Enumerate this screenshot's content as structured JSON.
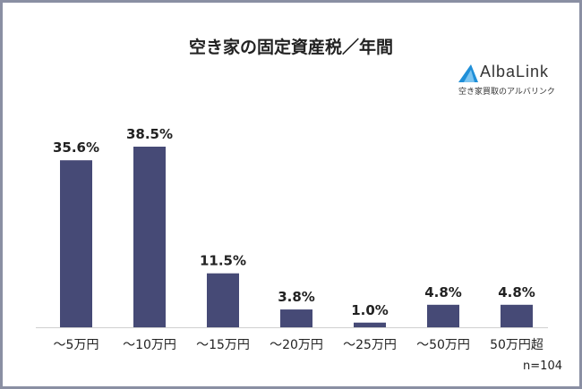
{
  "chart_data": {
    "type": "bar",
    "title": "空き家の固定資産税／年間",
    "categories": [
      "～5万円",
      "～10万円",
      "～15万円",
      "～20万円",
      "～25万円",
      "～50万円",
      "50万円超"
    ],
    "values": [
      35.6,
      38.5,
      11.5,
      3.8,
      1.0,
      4.8,
      4.8
    ],
    "data_labels": [
      "35.6%",
      "38.5%",
      "11.5%",
      "3.8%",
      "1.0%",
      "4.8%",
      "4.8%"
    ],
    "unit": "%",
    "ylim": [
      0,
      40
    ],
    "grid": false,
    "bar_color": "#464a76",
    "note": "n=104"
  },
  "logo": {
    "name": "AlbaLink",
    "tagline": "空き家買取のアルバリンク",
    "color": "#1f8fd8"
  }
}
